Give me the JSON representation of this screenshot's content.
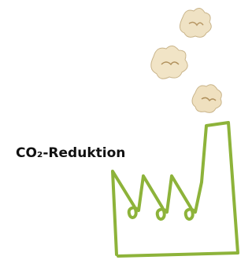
{
  "label": "CO₂-Reduktion"
}
